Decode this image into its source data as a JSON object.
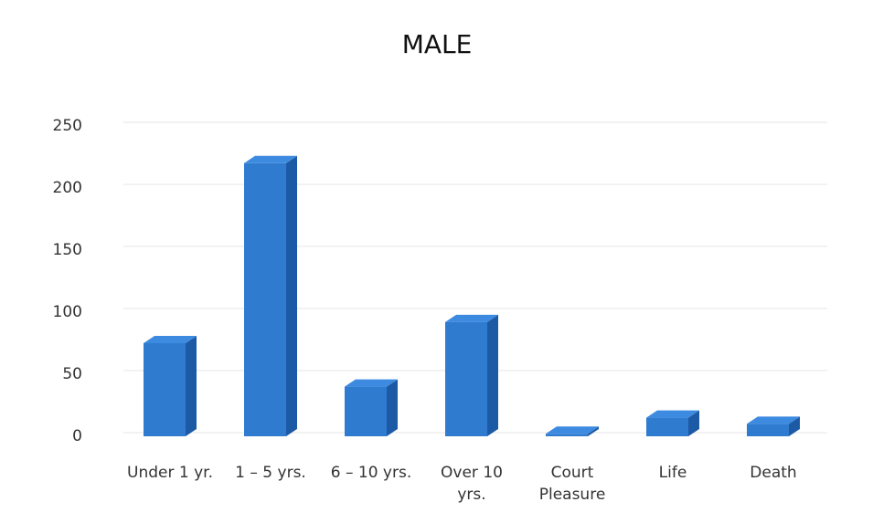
{
  "chart_data": {
    "type": "bar",
    "title": "MALE",
    "categories": [
      "Under 1 yr.",
      "1 – 5 yrs.",
      "6 – 10 yrs.",
      "Over 10 yrs.",
      "Court Pleasure",
      "Life",
      "Death"
    ],
    "values": [
      75,
      220,
      40,
      92,
      2,
      15,
      10
    ],
    "color": "#2f7bd0",
    "ylim": [
      0,
      250
    ],
    "yticks": [
      0,
      50,
      100,
      150,
      200,
      250
    ],
    "grid": true
  }
}
